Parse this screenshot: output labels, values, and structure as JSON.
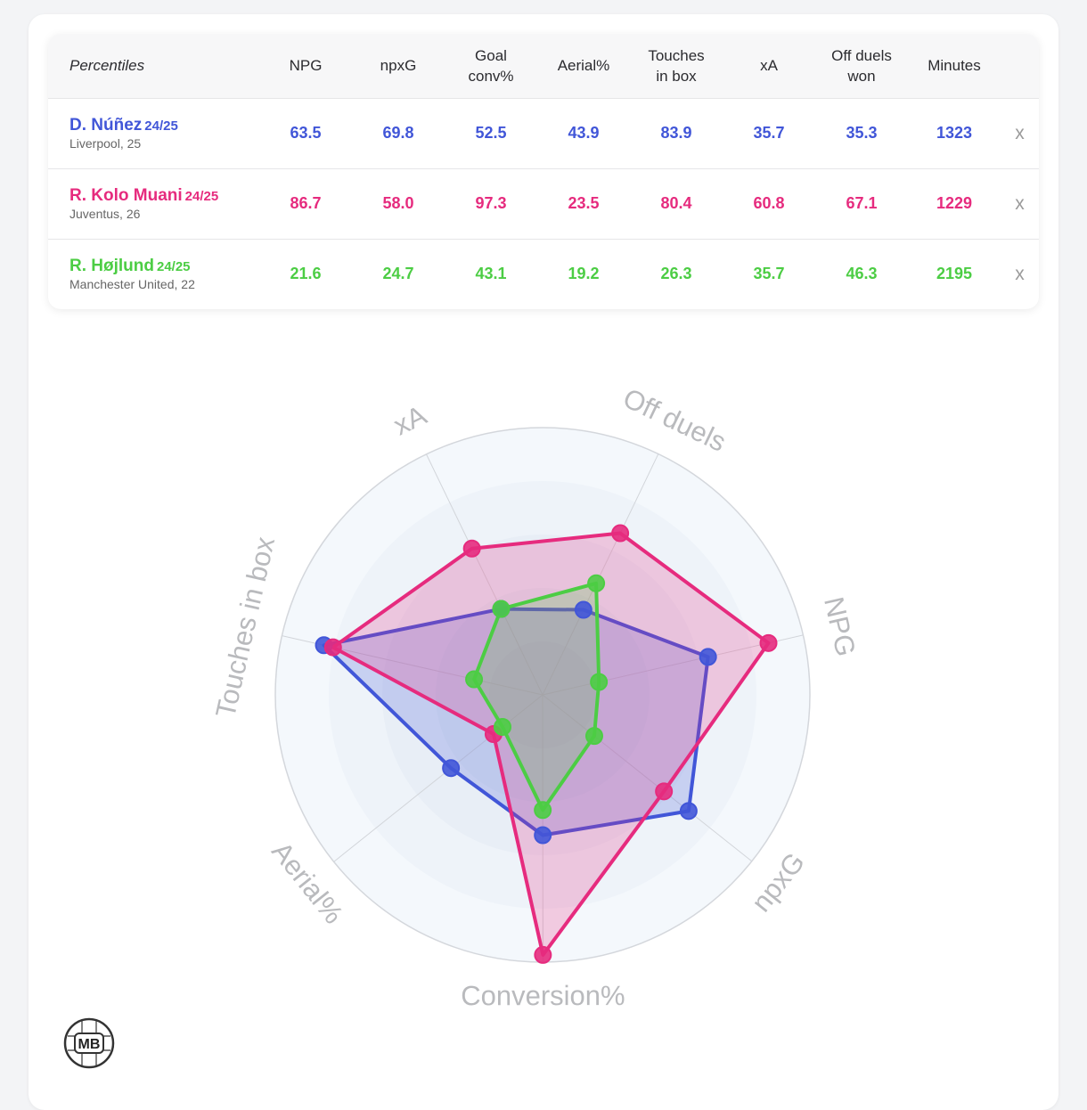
{
  "table": {
    "headers": [
      {
        "key": "label",
        "text": "Percentiles"
      },
      {
        "key": "npg",
        "text": "NPG"
      },
      {
        "key": "npxg",
        "text": "npxG"
      },
      {
        "key": "goal_conv",
        "text": "Goal\nconv%"
      },
      {
        "key": "aerial",
        "text": "Aerial%"
      },
      {
        "key": "touches",
        "text": "Touches\nin box"
      },
      {
        "key": "xa",
        "text": "xA"
      },
      {
        "key": "off_duels",
        "text": "Off duels\nwon"
      },
      {
        "key": "minutes",
        "text": "Minutes"
      }
    ],
    "remove_label": "x"
  },
  "players": [
    {
      "name": "D. Núñez",
      "season": "24/25",
      "club_age": "Liverpool, 25",
      "color": "#4156d8",
      "values": [
        "63.5",
        "69.8",
        "52.5",
        "43.9",
        "83.9",
        "35.7",
        "35.3",
        "1323"
      ]
    },
    {
      "name": "R. Kolo Muani",
      "season": "24/25",
      "club_age": "Juventus, 26",
      "color": "#e62b7e",
      "values": [
        "86.7",
        "58.0",
        "97.3",
        "23.5",
        "80.4",
        "60.8",
        "67.1",
        "1229"
      ]
    },
    {
      "name": "R. Højlund",
      "season": "24/25",
      "club_age": "Manchester United, 22",
      "color": "#4ccd44",
      "values": [
        "21.6",
        "24.7",
        "43.1",
        "19.2",
        "26.3",
        "35.7",
        "46.3",
        "2195"
      ]
    }
  ],
  "chart_data": {
    "type": "radar",
    "axes": [
      "xA",
      "Off duels",
      "NPG",
      "npxG",
      "Conversion%",
      "Aerial%",
      "Touches in box"
    ],
    "range": [
      0,
      100
    ],
    "rings": [
      20,
      40,
      60,
      80,
      100
    ],
    "series": [
      {
        "name": "D. Núñez",
        "color": "#4156d8",
        "values": [
          35.7,
          35.3,
          63.5,
          69.8,
          52.5,
          43.9,
          83.9
        ]
      },
      {
        "name": "R. Kolo Muani",
        "color": "#e62b7e",
        "values": [
          60.8,
          67.1,
          86.7,
          58.0,
          97.3,
          23.5,
          80.4
        ]
      },
      {
        "name": "R. Højlund",
        "color": "#4ccd44",
        "values": [
          35.7,
          46.3,
          21.6,
          24.7,
          43.1,
          19.2,
          26.3
        ]
      }
    ]
  },
  "logo": {
    "text": "MB"
  }
}
